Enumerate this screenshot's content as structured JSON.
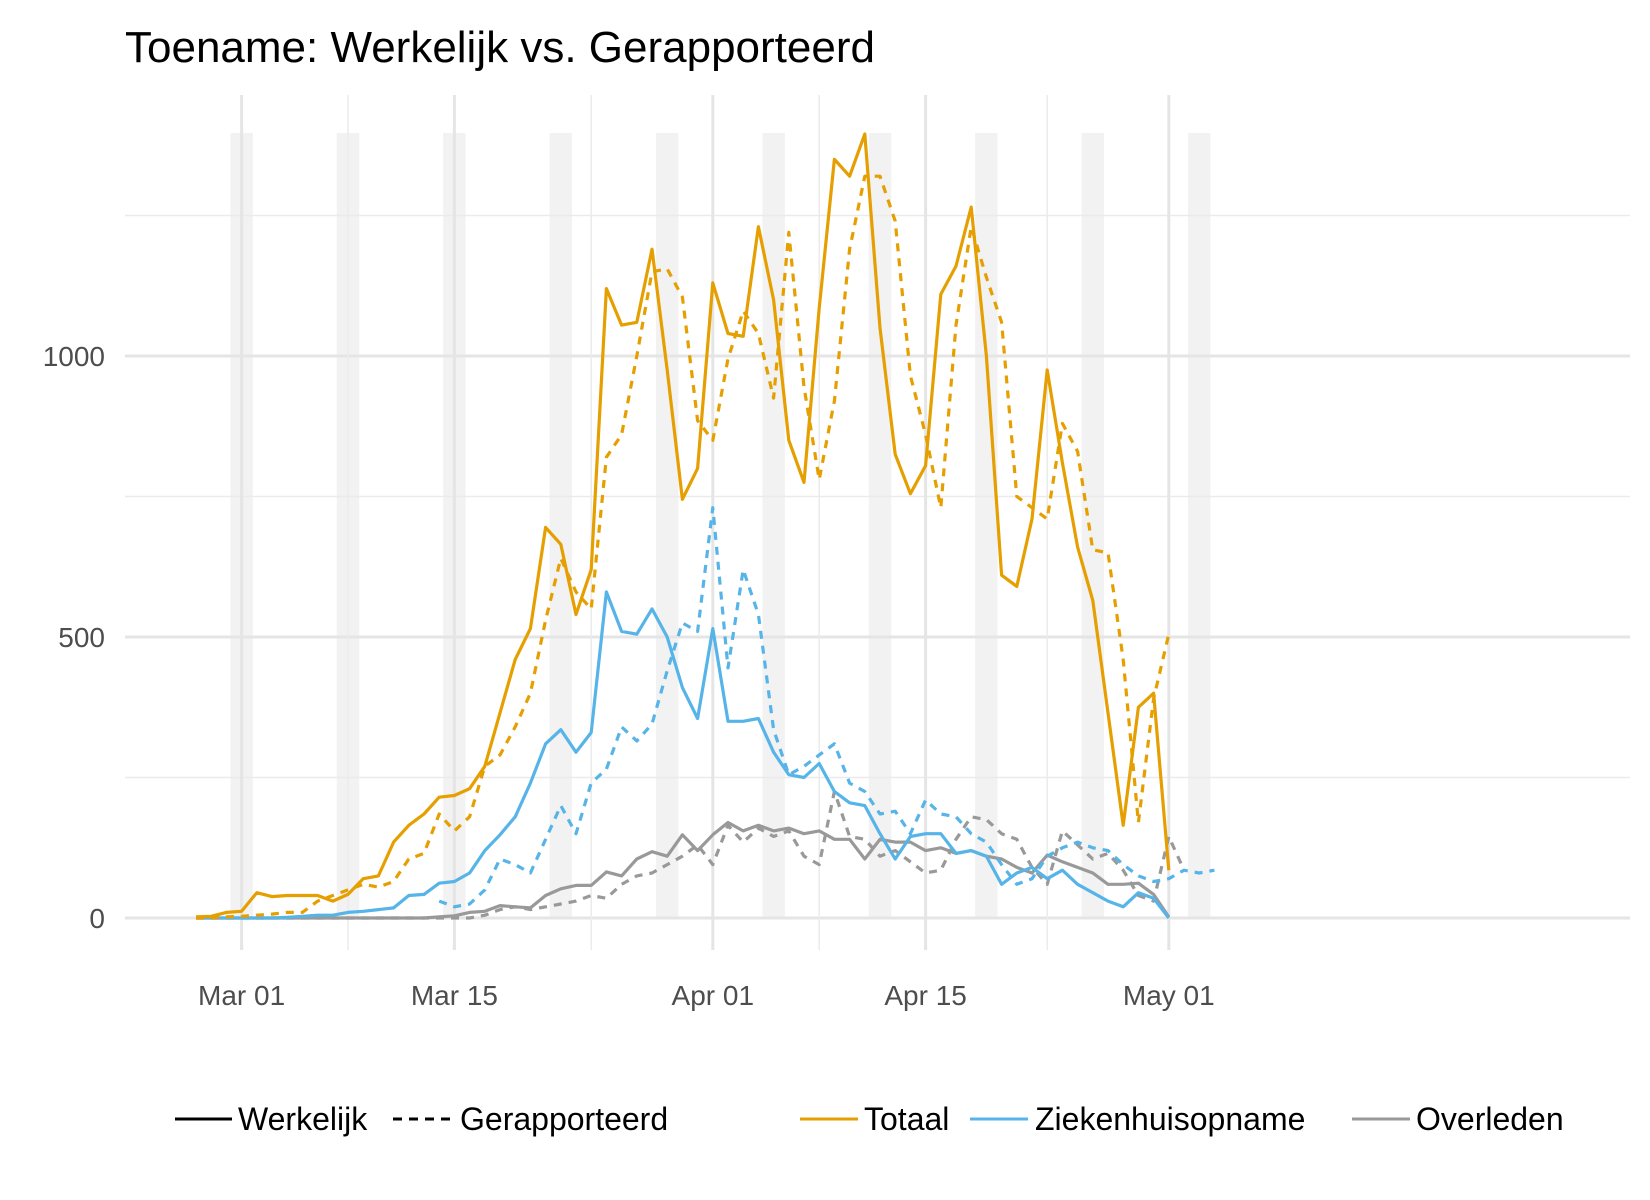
{
  "chart_data": {
    "type": "line",
    "title": "Toename: Werkelijk vs. Gerapporteerd",
    "xlabel": "",
    "ylabel": "",
    "x_ticks": [
      "Mar 01",
      "Mar 15",
      "Apr 01",
      "Apr 15",
      "May 01"
    ],
    "y_ticks": [
      "0",
      "500",
      "1000"
    ],
    "ylim": [
      -55,
      1390
    ],
    "grid": true,
    "weekend_shading": true,
    "line_type_legend": [
      {
        "name": "Werkelijk",
        "dash": "solid"
      },
      {
        "name": "Gerapporteerd",
        "dash": "dashed"
      }
    ],
    "colors": {
      "Totaal": "#E69F00",
      "Ziekenhuisopname": "#56B4E9",
      "Overleden": "#999999"
    },
    "dates_start": "2020-02-27",
    "series": [
      {
        "name": "Totaal",
        "type": "Werkelijk",
        "start": "2020-02-27",
        "values": [
          2,
          3,
          10,
          12,
          45,
          38,
          40,
          40,
          40,
          30,
          42,
          70,
          75,
          135,
          165,
          185,
          215,
          218,
          230,
          270,
          365,
          460,
          515,
          695,
          665,
          540,
          620,
          1120,
          1055,
          1060,
          1190,
          975,
          745,
          800,
          1130,
          1040,
          1035,
          1230,
          1100,
          850,
          775,
          1085,
          1350,
          1320,
          1395,
          1050,
          825,
          755,
          805,
          1110,
          1160,
          1265,
          1000,
          610,
          590,
          710,
          975,
          810,
          660,
          565,
          365,
          165,
          375,
          400,
          85
        ]
      },
      {
        "name": "Totaal",
        "type": "Gerapporteerd",
        "start": "2020-02-27",
        "values": [
          0,
          0,
          2,
          3,
          5,
          7,
          10,
          10,
          30,
          40,
          50,
          60,
          55,
          65,
          105,
          115,
          185,
          155,
          180,
          270,
          290,
          340,
          400,
          530,
          640,
          580,
          550,
          820,
          860,
          1000,
          1150,
          1155,
          1105,
          885,
          850,
          995,
          1080,
          1040,
          925,
          1220,
          945,
          780,
          920,
          1190,
          1320,
          1320,
          1240,
          965,
          860,
          730,
          1055,
          1230,
          1140,
          1060,
          750,
          730,
          710,
          880,
          830,
          655,
          650,
          460,
          170,
          390,
          505
        ]
      },
      {
        "name": "Ziekenhuisopname",
        "type": "Werkelijk",
        "start": "2020-02-27",
        "values": [
          0,
          0,
          0,
          0,
          0,
          0,
          1,
          3,
          5,
          5,
          10,
          12,
          15,
          18,
          40,
          42,
          62,
          65,
          80,
          120,
          148,
          180,
          240,
          310,
          335,
          295,
          330,
          580,
          510,
          505,
          550,
          500,
          410,
          355,
          515,
          350,
          350,
          355,
          295,
          255,
          250,
          275,
          225,
          205,
          200,
          150,
          105,
          145,
          150,
          150,
          115,
          120,
          110,
          60,
          80,
          90,
          70,
          85,
          60,
          45,
          30,
          20,
          45,
          35,
          0
        ]
      },
      {
        "name": "Ziekenhuisopname",
        "type": "Gerapporteerd",
        "start": "2020-03-14",
        "values": [
          30,
          20,
          25,
          50,
          105,
          95,
          80,
          140,
          200,
          150,
          240,
          265,
          340,
          315,
          345,
          440,
          525,
          510,
          730,
          445,
          620,
          540,
          335,
          255,
          270,
          290,
          310,
          240,
          225,
          185,
          190,
          150,
          210,
          185,
          180,
          150,
          135,
          95,
          60,
          70,
          110,
          125,
          135,
          125,
          120,
          95,
          75,
          65,
          70,
          85,
          80,
          85
        ]
      },
      {
        "name": "Overleden",
        "type": "Werkelijk",
        "start": "2020-02-27",
        "values": [
          0,
          0,
          0,
          0,
          0,
          0,
          0,
          0,
          0,
          0,
          0,
          0,
          0,
          0,
          0,
          0,
          2,
          4,
          10,
          12,
          22,
          20,
          18,
          40,
          52,
          58,
          58,
          82,
          75,
          105,
          118,
          110,
          148,
          120,
          148,
          170,
          155,
          165,
          155,
          160,
          150,
          155,
          140,
          140,
          105,
          140,
          135,
          135,
          120,
          125,
          115,
          120,
          110,
          105,
          90,
          80,
          112,
          100,
          90,
          80,
          60,
          60,
          62,
          42,
          2
        ]
      },
      {
        "name": "Overleden",
        "type": "Gerapporteerd",
        "start": "2020-02-27",
        "values": [
          0,
          0,
          0,
          0,
          0,
          0,
          0,
          0,
          0,
          0,
          0,
          0,
          0,
          0,
          0,
          0,
          0,
          0,
          0,
          5,
          15,
          20,
          15,
          20,
          25,
          30,
          40,
          35,
          60,
          75,
          80,
          95,
          110,
          130,
          95,
          165,
          135,
          160,
          145,
          155,
          110,
          95,
          225,
          145,
          140,
          110,
          120,
          100,
          80,
          85,
          140,
          180,
          175,
          150,
          140,
          90,
          60,
          155,
          130,
          105,
          115,
          85,
          40,
          30,
          145,
          85
        ]
      }
    ],
    "legend": {
      "placement": "bottom",
      "entries": [
        "Totaal",
        "Ziekenhuisopname",
        "Overleden"
      ]
    }
  }
}
